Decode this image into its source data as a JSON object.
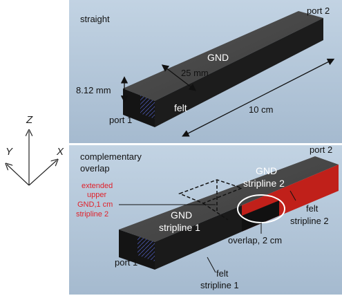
{
  "figure": {
    "axes": {
      "z": "Z",
      "y": "Y",
      "x": "X"
    },
    "top_panel": {
      "title": "straight",
      "port_top": "port 2",
      "port_bottom": "port 1",
      "gnd": "GND",
      "width_dim": "25 mm",
      "height_dim": "8.12 mm",
      "felt": "felt",
      "length_dim": "10 cm"
    },
    "bottom_panel": {
      "title_line1": "complementary",
      "title_line2": "overlap",
      "port_top": "port 2",
      "port_bottom": "port 1",
      "gnd2_line1": "GND",
      "gnd2_line2": "stripline 2",
      "gnd1_line1": "GND",
      "gnd1_line2": "stripline 1",
      "ext_line1": "extended",
      "ext_line2": "upper",
      "ext_line3": "GND,1 cm",
      "ext_line4": "stripline 2",
      "felt2_line1": "felt",
      "felt2_line2": "stripline 2",
      "overlap": "overlap, 2 cm",
      "felt1_line1": "felt",
      "felt1_line2": "stripline 1"
    },
    "colors": {
      "panel_bg": "#b3c6d8",
      "block_top": "#4a4a4a",
      "block_side": "#161616",
      "felt_side": "#c0201a",
      "highlight_red": "#e0202a"
    }
  }
}
